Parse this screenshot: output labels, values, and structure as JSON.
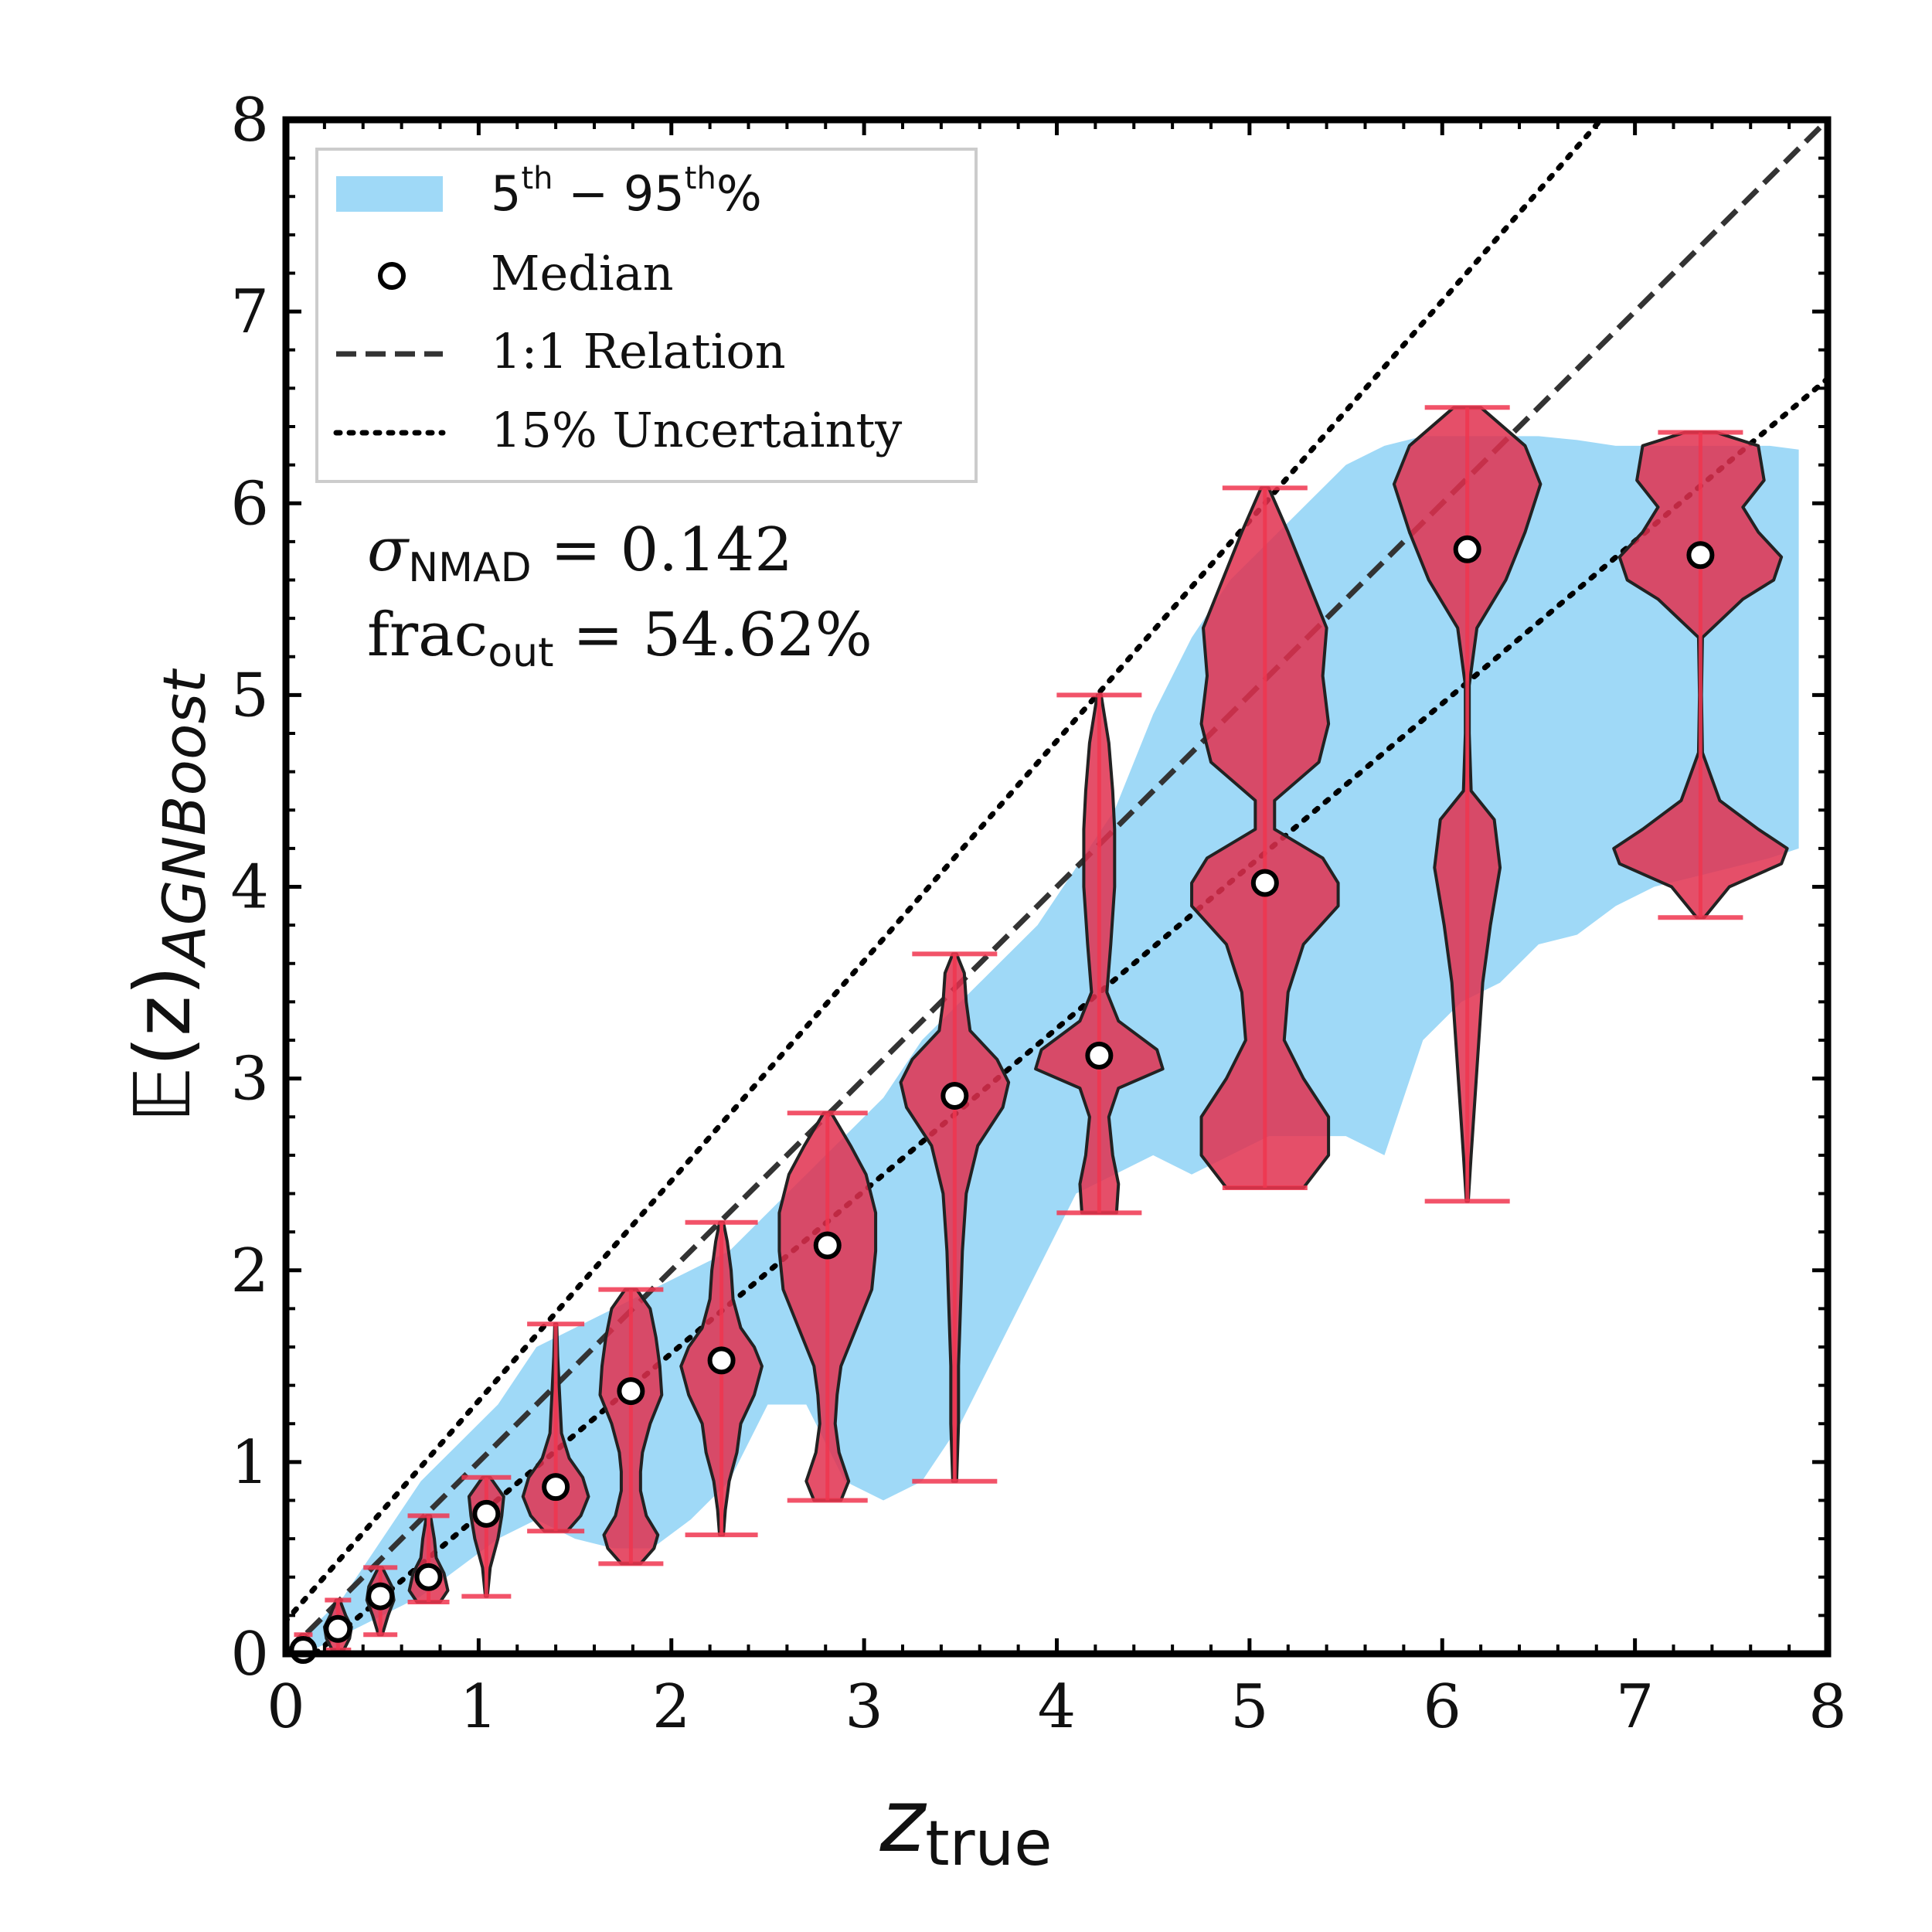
{
  "colors": {
    "band": "#9fd9f7",
    "violin": "#e0304f",
    "violin_line": "#f0354f",
    "axis": "#000000",
    "text": "#111111"
  },
  "chart_data": {
    "type": "violin",
    "xlim": [
      0,
      8
    ],
    "ylim": [
      0,
      8
    ],
    "xticks": [
      "0",
      "1",
      "2",
      "3",
      "4",
      "5",
      "6",
      "7",
      "8"
    ],
    "yticks": [
      "0",
      "1",
      "2",
      "3",
      "4",
      "5",
      "6",
      "7",
      "8"
    ],
    "xlabel": {
      "main": "z",
      "sub": "true"
    },
    "ylabel": {
      "main": "𝔼(z)",
      "sub": "AGNBoost"
    },
    "legend": {
      "band_label": {
        "main": "5",
        "sup1": "th",
        "mid": " − 95",
        "sup2": "th",
        "end": "%"
      },
      "median_label": "Median",
      "relation_label": "1:1 Relation",
      "uncertainty_label": "15% Uncertainty"
    },
    "stats": {
      "sigma_label": "σ",
      "sigma_sub": "NMAD",
      "sigma_value": " = 0.142",
      "frac_label": "frac",
      "frac_sub": "out",
      "frac_value": " = 54.62%"
    },
    "band": {
      "x": [
        0.1,
        0.3,
        0.5,
        0.7,
        0.9,
        1.1,
        1.3,
        1.5,
        1.7,
        1.9,
        2.1,
        2.3,
        2.5,
        2.7,
        2.9,
        3.1,
        3.3,
        3.5,
        3.7,
        3.9,
        4.1,
        4.3,
        4.5,
        4.7,
        4.9,
        5.1,
        5.3,
        5.5,
        5.7,
        5.9,
        6.1,
        6.3,
        6.5,
        6.7,
        6.9,
        7.1,
        7.3,
        7.5,
        7.7,
        7.85
      ],
      "lower": [
        0.0,
        0.1,
        0.2,
        0.3,
        0.45,
        0.6,
        0.7,
        0.6,
        0.55,
        0.55,
        0.7,
        0.9,
        1.3,
        1.3,
        0.9,
        0.8,
        0.9,
        1.2,
        1.6,
        2.0,
        2.4,
        2.5,
        2.6,
        2.5,
        2.6,
        2.7,
        2.7,
        2.7,
        2.6,
        3.2,
        3.4,
        3.5,
        3.7,
        3.75,
        3.9,
        4.0,
        4.05,
        4.1,
        4.15,
        4.2
      ],
      "upper": [
        0.1,
        0.3,
        0.6,
        0.9,
        1.1,
        1.3,
        1.6,
        1.7,
        1.8,
        1.9,
        2.0,
        2.1,
        2.3,
        2.5,
        2.7,
        2.9,
        3.2,
        3.4,
        3.6,
        3.8,
        4.1,
        4.4,
        4.9,
        5.3,
        5.6,
        5.8,
        6.0,
        6.2,
        6.3,
        6.35,
        6.35,
        6.35,
        6.35,
        6.33,
        6.3,
        6.3,
        6.3,
        6.3,
        6.3,
        6.28
      ]
    },
    "violins": [
      {
        "x": 0.09,
        "median": 0.02,
        "min": 0.0,
        "max": 0.1,
        "profile": [
          [
            0.0,
            0.06
          ],
          [
            0.03,
            0.05
          ],
          [
            0.07,
            0.04
          ],
          [
            0.1,
            0.01
          ]
        ]
      },
      {
        "x": 0.27,
        "median": 0.13,
        "min": 0.02,
        "max": 0.28,
        "profile": [
          [
            0.02,
            0.03
          ],
          [
            0.08,
            0.06
          ],
          [
            0.14,
            0.07
          ],
          [
            0.2,
            0.04
          ],
          [
            0.28,
            0.01
          ]
        ]
      },
      {
        "x": 0.49,
        "median": 0.3,
        "min": 0.1,
        "max": 0.45,
        "profile": [
          [
            0.1,
            0.01
          ],
          [
            0.2,
            0.04
          ],
          [
            0.28,
            0.07
          ],
          [
            0.35,
            0.06
          ],
          [
            0.45,
            0.01
          ]
        ]
      },
      {
        "x": 0.74,
        "median": 0.4,
        "min": 0.27,
        "max": 0.72,
        "profile": [
          [
            0.27,
            0.06
          ],
          [
            0.33,
            0.1
          ],
          [
            0.42,
            0.08
          ],
          [
            0.5,
            0.04
          ],
          [
            0.6,
            0.03
          ],
          [
            0.72,
            0.01
          ]
        ]
      },
      {
        "x": 1.04,
        "median": 0.73,
        "min": 0.3,
        "max": 0.92,
        "profile": [
          [
            0.3,
            0.005
          ],
          [
            0.45,
            0.02
          ],
          [
            0.6,
            0.06
          ],
          [
            0.72,
            0.08
          ],
          [
            0.82,
            0.09
          ],
          [
            0.92,
            0.02
          ]
        ]
      },
      {
        "x": 1.4,
        "median": 0.87,
        "min": 0.64,
        "max": 1.72,
        "profile": [
          [
            0.64,
            0.06
          ],
          [
            0.72,
            0.13
          ],
          [
            0.82,
            0.17
          ],
          [
            0.92,
            0.14
          ],
          [
            1.02,
            0.07
          ],
          [
            1.15,
            0.03
          ],
          [
            1.35,
            0.02
          ],
          [
            1.55,
            0.01
          ],
          [
            1.72,
            0.005
          ]
        ]
      },
      {
        "x": 1.79,
        "median": 1.37,
        "min": 0.47,
        "max": 1.9,
        "profile": [
          [
            0.47,
            0.05
          ],
          [
            0.55,
            0.12
          ],
          [
            0.62,
            0.14
          ],
          [
            0.72,
            0.08
          ],
          [
            0.85,
            0.05
          ],
          [
            0.95,
            0.05
          ],
          [
            1.05,
            0.06
          ],
          [
            1.2,
            0.1
          ],
          [
            1.35,
            0.16
          ],
          [
            1.5,
            0.15
          ],
          [
            1.65,
            0.13
          ],
          [
            1.8,
            0.1
          ],
          [
            1.9,
            0.03
          ]
        ]
      },
      {
        "x": 2.26,
        "median": 1.53,
        "min": 0.62,
        "max": 2.25,
        "profile": [
          [
            0.62,
            0.01
          ],
          [
            0.75,
            0.02
          ],
          [
            0.9,
            0.04
          ],
          [
            1.05,
            0.08
          ],
          [
            1.2,
            0.1
          ],
          [
            1.35,
            0.17
          ],
          [
            1.5,
            0.21
          ],
          [
            1.6,
            0.17
          ],
          [
            1.7,
            0.1
          ],
          [
            1.85,
            0.06
          ],
          [
            2.0,
            0.05
          ],
          [
            2.15,
            0.03
          ],
          [
            2.25,
            0.01
          ]
        ]
      },
      {
        "x": 2.81,
        "median": 2.13,
        "min": 0.8,
        "max": 2.82,
        "profile": [
          [
            0.8,
            0.07
          ],
          [
            0.9,
            0.11
          ],
          [
            1.05,
            0.06
          ],
          [
            1.2,
            0.04
          ],
          [
            1.35,
            0.05
          ],
          [
            1.5,
            0.07
          ],
          [
            1.7,
            0.15
          ],
          [
            1.9,
            0.23
          ],
          [
            2.1,
            0.25
          ],
          [
            2.3,
            0.25
          ],
          [
            2.5,
            0.2
          ],
          [
            2.65,
            0.12
          ],
          [
            2.82,
            0.02
          ]
        ]
      },
      {
        "x": 3.47,
        "median": 2.91,
        "min": 0.9,
        "max": 3.65,
        "profile": [
          [
            0.9,
            0.01
          ],
          [
            1.2,
            0.02
          ],
          [
            1.5,
            0.02
          ],
          [
            1.8,
            0.03
          ],
          [
            2.1,
            0.04
          ],
          [
            2.4,
            0.06
          ],
          [
            2.65,
            0.12
          ],
          [
            2.85,
            0.25
          ],
          [
            2.98,
            0.28
          ],
          [
            3.1,
            0.22
          ],
          [
            3.25,
            0.08
          ],
          [
            3.4,
            0.06
          ],
          [
            3.55,
            0.05
          ],
          [
            3.65,
            0.01
          ]
        ]
      },
      {
        "x": 4.22,
        "median": 3.12,
        "min": 2.3,
        "max": 5.0,
        "profile": [
          [
            2.3,
            0.09
          ],
          [
            2.45,
            0.1
          ],
          [
            2.6,
            0.07
          ],
          [
            2.8,
            0.05
          ],
          [
            2.95,
            0.1
          ],
          [
            3.05,
            0.33
          ],
          [
            3.15,
            0.3
          ],
          [
            3.3,
            0.1
          ],
          [
            3.45,
            0.04
          ],
          [
            3.7,
            0.06
          ],
          [
            4.0,
            0.08
          ],
          [
            4.3,
            0.08
          ],
          [
            4.5,
            0.07
          ],
          [
            4.75,
            0.05
          ],
          [
            5.0,
            0.01
          ]
        ]
      },
      {
        "x": 5.08,
        "median": 4.02,
        "min": 2.43,
        "max": 6.08,
        "profile": [
          [
            2.43,
            0.2
          ],
          [
            2.6,
            0.33
          ],
          [
            2.8,
            0.33
          ],
          [
            3.0,
            0.2
          ],
          [
            3.2,
            0.1
          ],
          [
            3.45,
            0.12
          ],
          [
            3.7,
            0.2
          ],
          [
            3.9,
            0.38
          ],
          [
            4.02,
            0.38
          ],
          [
            4.15,
            0.3
          ],
          [
            4.3,
            0.05
          ],
          [
            4.45,
            0.05
          ],
          [
            4.65,
            0.28
          ],
          [
            4.85,
            0.33
          ],
          [
            5.1,
            0.3
          ],
          [
            5.35,
            0.32
          ],
          [
            5.6,
            0.22
          ],
          [
            5.85,
            0.12
          ],
          [
            6.08,
            0.02
          ]
        ]
      },
      {
        "x": 6.13,
        "median": 5.76,
        "min": 2.36,
        "max": 6.5,
        "profile": [
          [
            2.36,
            0.005
          ],
          [
            2.6,
            0.02
          ],
          [
            2.9,
            0.04
          ],
          [
            3.2,
            0.06
          ],
          [
            3.5,
            0.08
          ],
          [
            3.8,
            0.12
          ],
          [
            4.1,
            0.17
          ],
          [
            4.35,
            0.14
          ],
          [
            4.5,
            0.02
          ],
          [
            4.8,
            0.01
          ],
          [
            5.05,
            0.01
          ],
          [
            5.35,
            0.05
          ],
          [
            5.6,
            0.2
          ],
          [
            5.85,
            0.3
          ],
          [
            6.1,
            0.38
          ],
          [
            6.3,
            0.3
          ],
          [
            6.5,
            0.07
          ]
        ]
      },
      {
        "x": 7.34,
        "median": 5.73,
        "min": 3.84,
        "max": 6.37,
        "profile": [
          [
            3.84,
            0.02
          ],
          [
            4.0,
            0.15
          ],
          [
            4.12,
            0.42
          ],
          [
            4.2,
            0.45
          ],
          [
            4.3,
            0.3
          ],
          [
            4.45,
            0.1
          ],
          [
            4.7,
            0.01
          ],
          [
            5.0,
            0.005
          ],
          [
            5.3,
            0.01
          ],
          [
            5.5,
            0.22
          ],
          [
            5.6,
            0.38
          ],
          [
            5.72,
            0.42
          ],
          [
            5.85,
            0.3
          ],
          [
            5.98,
            0.22
          ],
          [
            6.12,
            0.33
          ],
          [
            6.3,
            0.3
          ],
          [
            6.37,
            0.08
          ]
        ]
      }
    ]
  }
}
